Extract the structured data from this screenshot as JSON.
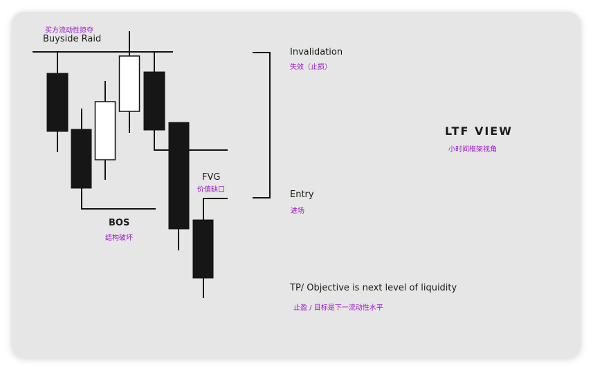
{
  "labels": {
    "buyside_raid_cn": "买方流动性掠夺",
    "buyside_raid_en": "Buyside Raid",
    "invalidation_en": "Invalidation",
    "invalidation_cn": "失效（止损）",
    "ltf_view_en": "LTF VIEW",
    "ltf_view_cn": "小时间框架视角",
    "fvg_en": "FVG",
    "fvg_cn": "价值缺口",
    "entry_en": "Entry",
    "entry_cn": "进场",
    "bos_en": "BOS",
    "bos_cn": "结构破坏",
    "tp_en": "TP/ Objective is next level of liquidity",
    "tp_cn": "止盈 / 目标是下一流动性水平"
  },
  "colors": {
    "card_bg": "#e6e6e6",
    "line": "#111111",
    "bear_candle": "#161616",
    "bull_candle": "#ffffff",
    "accent_cn": "#9a17c8"
  },
  "icons": {
    "bracket": "right-square-bracket"
  }
}
